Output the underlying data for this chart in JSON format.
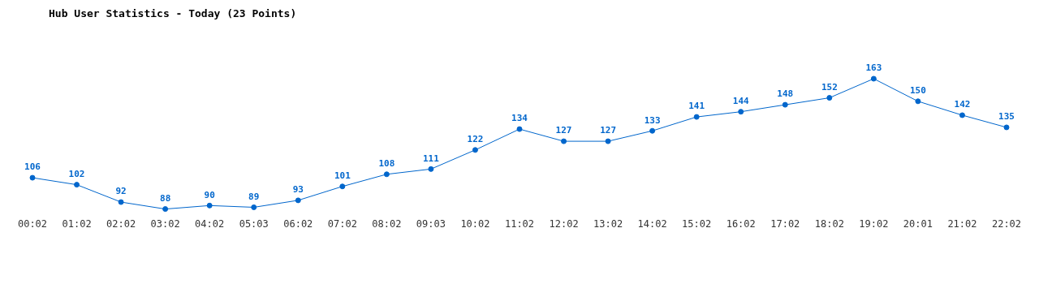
{
  "chart_data": {
    "type": "line",
    "title": "Hub User Statistics - Today (23 Points)",
    "categories": [
      "00:02",
      "01:02",
      "02:02",
      "03:02",
      "04:02",
      "05:03",
      "06:02",
      "07:02",
      "08:02",
      "09:03",
      "10:02",
      "11:02",
      "12:02",
      "13:02",
      "14:02",
      "15:02",
      "16:02",
      "17:02",
      "18:02",
      "19:02",
      "20:01",
      "21:02",
      "22:02"
    ],
    "series": [
      {
        "color": "#0066cc",
        "values": [
          106,
          102,
          92,
          88,
          90,
          89,
          93,
          101,
          108,
          111,
          122,
          134,
          127,
          127,
          133,
          141,
          144,
          148,
          152,
          163,
          150,
          142,
          135
        ]
      }
    ],
    "tick_labels": "x",
    "grid": false,
    "legend": false,
    "marker": "circle",
    "line_style": "solid",
    "data_labels": true
  }
}
